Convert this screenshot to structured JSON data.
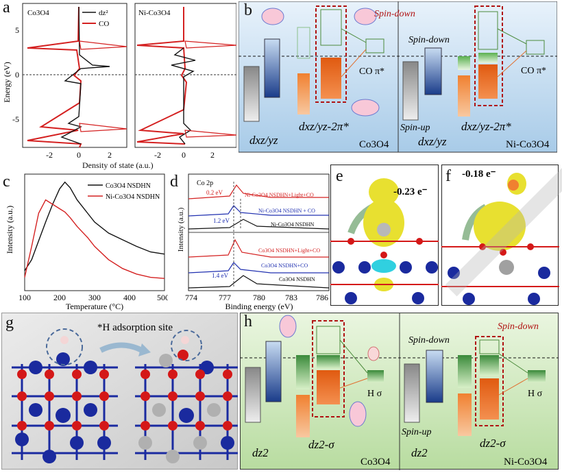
{
  "panels": {
    "a": {
      "label": "a",
      "ylabel": "Energy (eV)",
      "xlabel": "Density of state (a.u.)",
      "left_title": "Co3O4",
      "right_title": "Ni-Co3O4",
      "legend": [
        "dz²",
        "CO"
      ],
      "yticks": [
        "5",
        "0",
        "-5"
      ],
      "xticks_left": [
        "-2",
        "0",
        "2"
      ],
      "xticks_right": [
        "-2",
        "0",
        "2"
      ]
    },
    "b": {
      "label": "b",
      "spin_down_top": "Spin-down",
      "spin_down_mid": "Spin-down",
      "spin_up": "Spin-up",
      "co_pi_left": "CO π*",
      "co_pi_right": "CO π*",
      "dxz_left": "dxz/yz",
      "dxz_pi_left": "dxz/yz-2π*",
      "dxz_right": "dxz/yz",
      "dxz_pi_right": "dxz/yz-2π*",
      "name_left": "Co3O4",
      "name_right": "Ni-Co3O4"
    },
    "c": {
      "label": "c",
      "ylabel": "Intensity (a.u.)",
      "xlabel": "Temperature (°C)",
      "legend": [
        "Co3O4 NSDHN",
        "Ni-Co3O4 NSDHN"
      ],
      "xticks": [
        "100",
        "200",
        "300",
        "400",
        "500"
      ]
    },
    "d": {
      "label": "d",
      "title": "Co 2p",
      "ylabel": "Intensity (a.u.)",
      "xlabel": "Binding energy (eV)",
      "xticks": [
        "774",
        "777",
        "780",
        "783",
        "786"
      ],
      "curves": [
        "Ni-Co3O4 NSDHN+Light+CO",
        "Ni-Co3O4 NSDHN + CO",
        "Ni-Co3O4 NSDHN",
        "Co3O4 NSDHN+Light+CO",
        "Co3O4 NSDHN+CO",
        "Co3O4 NSDHN"
      ],
      "shift1": "0.2 eV",
      "shift2": "1.2 eV",
      "shift3": "1.4 eV"
    },
    "e": {
      "label": "e",
      "charge": "-0.23 e⁻"
    },
    "f": {
      "label": "f",
      "charge": "-0.18 e⁻"
    },
    "g": {
      "label": "g",
      "title": "*H adsorption site"
    },
    "h": {
      "label": "h",
      "spin_down_top": "Spin-down",
      "spin_down_mid": "Spin-down",
      "spin_up": "Spin-up",
      "h_sigma_left": "H σ",
      "h_sigma_right": "H σ",
      "dz2_left": "dz2",
      "dz2_sigma_left": "dz2-σ",
      "dz2_right": "dz2",
      "dz2_sigma_right": "dz2-σ",
      "name_left": "Co3O4",
      "name_right": "Ni-Co3O4"
    }
  },
  "colors": {
    "co": "#d42020",
    "dz2": "#111111",
    "blue_atom": "#1a2a9e",
    "red_atom": "#d41818",
    "yellow_iso": "#e8e030",
    "cyan_iso": "#30d0e0"
  },
  "chart_data": [
    {
      "type": "line",
      "panel": "c",
      "x": [
        100,
        120,
        140,
        160,
        180,
        200,
        215,
        230,
        250,
        280,
        300,
        340,
        380,
        420,
        460,
        500
      ],
      "series": [
        {
          "name": "Co3O4 NSDHN",
          "values": [
            0.18,
            0.28,
            0.45,
            0.62,
            0.78,
            0.92,
            0.98,
            0.93,
            0.82,
            0.7,
            0.62,
            0.52,
            0.46,
            0.4,
            0.35,
            0.33
          ]
        },
        {
          "name": "Ni-Co3O4 NSDHN",
          "values": [
            0.12,
            0.4,
            0.7,
            0.82,
            0.78,
            0.74,
            0.71,
            0.66,
            0.58,
            0.48,
            0.4,
            0.28,
            0.2,
            0.15,
            0.12,
            0.11
          ]
        }
      ],
      "xlabel": "Temperature (°C)",
      "ylabel": "Intensity (a.u.)",
      "xlim": [
        100,
        500
      ]
    }
  ]
}
